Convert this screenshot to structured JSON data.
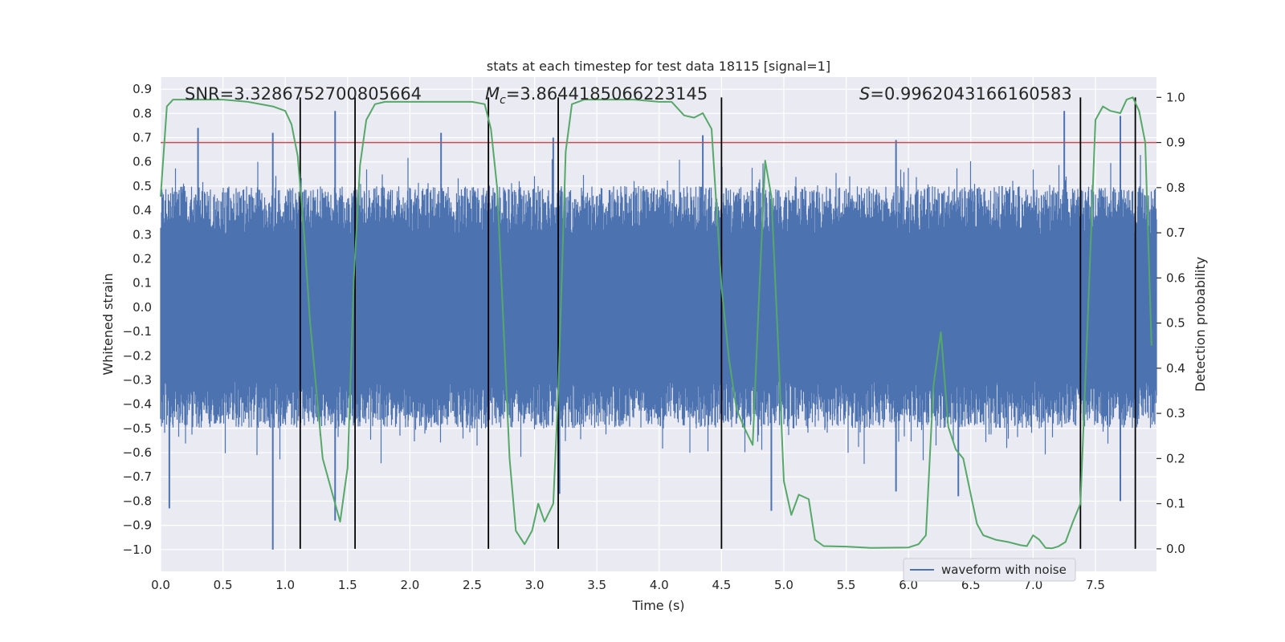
{
  "chart_data": {
    "type": "line",
    "title": "stats at each timestep for test data 18115 [signal=1]",
    "xlabel": "Time (s)",
    "ylabel": "Whitened strain",
    "y2label": "Detection probability",
    "xlim": [
      0.0,
      7.99
    ],
    "ylim": [
      -1.09,
      0.95
    ],
    "y2lim": [
      -0.05,
      1.045
    ],
    "xticks": [
      0.0,
      0.5,
      1.0,
      1.5,
      2.0,
      2.5,
      3.0,
      3.5,
      4.0,
      4.5,
      5.0,
      5.5,
      6.0,
      6.5,
      7.0,
      7.5
    ],
    "xtick_labels": [
      "0.0",
      "0.5",
      "1.0",
      "1.5",
      "2.0",
      "2.5",
      "3.0",
      "3.5",
      "4.0",
      "4.5",
      "5.0",
      "5.5",
      "6.0",
      "6.5",
      "7.0",
      "7.5"
    ],
    "yticks": [
      0.9,
      0.8,
      0.7,
      0.6,
      0.5,
      0.4,
      0.3,
      0.2,
      0.1,
      0.0,
      -0.1,
      -0.2,
      -0.3,
      -0.4,
      -0.5,
      -0.6,
      -0.7,
      -0.8,
      -0.9,
      -1.0
    ],
    "ytick_labels": [
      "0.9",
      "0.8",
      "0.7",
      "0.6",
      "0.5",
      "0.4",
      "0.3",
      "0.2",
      "0.1",
      "0.0",
      "−0.1",
      "−0.2",
      "−0.3",
      "−0.4",
      "−0.5",
      "−0.6",
      "−0.7",
      "−0.8",
      "−0.9",
      "−1.0"
    ],
    "y2ticks": [
      1.0,
      0.9,
      0.8,
      0.7,
      0.6,
      0.5,
      0.4,
      0.3,
      0.2,
      0.1,
      0.0
    ],
    "y2tick_labels": [
      "1.0",
      "0.9",
      "0.8",
      "0.7",
      "0.6",
      "0.5",
      "0.4",
      "0.3",
      "0.2",
      "0.1",
      "0.0"
    ],
    "annotations": {
      "snr": "SNR=3.3286752700805664",
      "mc_symbol": "M",
      "mc_sub": "c",
      "mc_value": "=3.8644185066223145",
      "s_symbol": "S",
      "s_value": "=0.9962043166160583"
    },
    "threshold": 0.9,
    "event_lines": [
      1.12,
      1.56,
      2.63,
      3.19,
      4.5,
      7.38,
      7.82
    ],
    "waveform": {
      "name": "waveform with noise",
      "color": "#4c72b0",
      "core_half_amplitude": 0.3,
      "typical_peak": 0.5,
      "spikes_high": [
        [
          0.3,
          0.74
        ],
        [
          0.9,
          0.72
        ],
        [
          1.4,
          0.81
        ],
        [
          2.25,
          0.72
        ],
        [
          3.15,
          0.7
        ],
        [
          4.35,
          0.71
        ],
        [
          5.9,
          0.69
        ],
        [
          7.25,
          0.81
        ],
        [
          7.7,
          0.79
        ]
      ],
      "spikes_low": [
        [
          0.07,
          -0.83
        ],
        [
          0.9,
          -1.0
        ],
        [
          1.4,
          -0.88
        ],
        [
          3.2,
          -0.77
        ],
        [
          4.9,
          -0.84
        ],
        [
          5.9,
          -0.76
        ],
        [
          6.4,
          -0.78
        ],
        [
          7.7,
          -0.8
        ]
      ]
    },
    "probability": {
      "name": "detection probability",
      "color": "#55a868",
      "x": [
        0.0,
        0.05,
        0.1,
        0.2,
        0.5,
        0.7,
        0.9,
        1.0,
        1.05,
        1.1,
        1.15,
        1.2,
        1.3,
        1.38,
        1.44,
        1.5,
        1.55,
        1.6,
        1.65,
        1.72,
        1.8,
        1.9,
        2.0,
        2.2,
        2.5,
        2.6,
        2.65,
        2.7,
        2.75,
        2.8,
        2.85,
        2.92,
        2.98,
        3.03,
        3.08,
        3.15,
        3.19,
        3.25,
        3.3,
        3.4,
        3.6,
        3.8,
        4.0,
        4.1,
        4.2,
        4.28,
        4.35,
        4.42,
        4.5,
        4.56,
        4.62,
        4.68,
        4.75,
        4.8,
        4.85,
        4.9,
        4.95,
        5.0,
        5.06,
        5.12,
        5.2,
        5.25,
        5.32,
        5.5,
        5.7,
        6.0,
        6.08,
        6.14,
        6.2,
        6.26,
        6.32,
        6.38,
        6.44,
        6.5,
        6.55,
        6.6,
        6.7,
        6.8,
        6.9,
        6.95,
        7.0,
        7.05,
        7.1,
        7.15,
        7.2,
        7.26,
        7.32,
        7.38,
        7.43,
        7.5,
        7.56,
        7.62,
        7.7,
        7.75,
        7.8,
        7.85,
        7.9,
        7.95
      ],
      "y": [
        0.78,
        0.98,
        0.995,
        0.995,
        0.995,
        0.99,
        0.98,
        0.97,
        0.94,
        0.87,
        0.7,
        0.5,
        0.2,
        0.12,
        0.06,
        0.18,
        0.6,
        0.85,
        0.95,
        0.985,
        0.99,
        0.99,
        0.99,
        0.99,
        0.99,
        0.985,
        0.93,
        0.8,
        0.5,
        0.2,
        0.04,
        0.01,
        0.04,
        0.1,
        0.06,
        0.1,
        0.35,
        0.88,
        0.985,
        0.995,
        0.995,
        0.995,
        0.99,
        0.99,
        0.96,
        0.955,
        0.965,
        0.93,
        0.58,
        0.42,
        0.31,
        0.27,
        0.23,
        0.55,
        0.86,
        0.78,
        0.48,
        0.15,
        0.075,
        0.12,
        0.11,
        0.02,
        0.006,
        0.005,
        0.002,
        0.003,
        0.01,
        0.03,
        0.36,
        0.48,
        0.27,
        0.22,
        0.2,
        0.12,
        0.055,
        0.03,
        0.02,
        0.015,
        0.008,
        0.006,
        0.03,
        0.02,
        0.002,
        0.001,
        0.005,
        0.015,
        0.06,
        0.1,
        0.45,
        0.95,
        0.98,
        0.97,
        0.965,
        0.995,
        1.0,
        0.97,
        0.9,
        0.45
      ]
    },
    "legend": {
      "label": "waveform with noise",
      "placement": "lower-right"
    },
    "colors": {
      "threshold": "#c44e52",
      "event_line": "#000000",
      "background": "#eaeaf2",
      "grid": "#ffffff"
    },
    "grid": true
  }
}
